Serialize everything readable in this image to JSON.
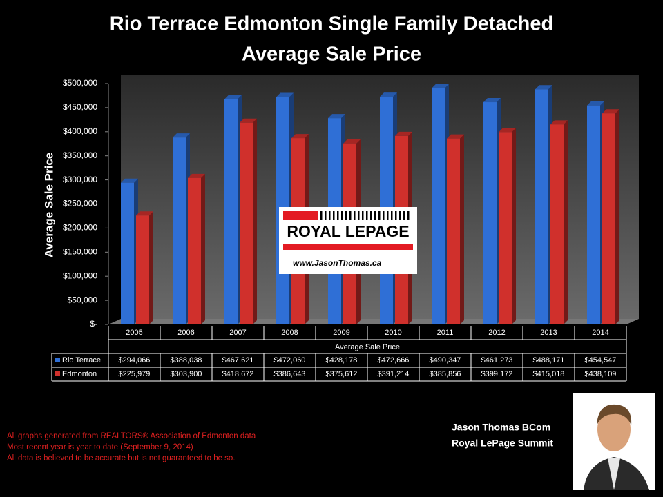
{
  "chart_data": {
    "type": "bar",
    "title": [
      "Rio Terrace Edmonton Single Family Detached",
      "Average Sale Price"
    ],
    "y_label": "Average Sale Price",
    "x_label": "Average Sale Price",
    "categories": [
      "2005",
      "2006",
      "2007",
      "2008",
      "2009",
      "2010",
      "2011",
      "2012",
      "2013",
      "2014"
    ],
    "series": [
      {
        "name": "Rio Terrace",
        "color": "#2f6fd6",
        "values": [
          294066,
          388038,
          467621,
          472060,
          428178,
          472666,
          490347,
          461273,
          488171,
          454547
        ],
        "value_labels": [
          "$294,066",
          "$388,038",
          "$467,621",
          "$472,060",
          "$428,178",
          "$472,666",
          "$490,347",
          "$461,273",
          "$488,171",
          "$454,547"
        ]
      },
      {
        "name": "Edmonton",
        "color": "#d0302c",
        "values": [
          225979,
          303900,
          418672,
          386643,
          375612,
          391214,
          385856,
          399172,
          415018,
          438109
        ],
        "value_labels": [
          "$225,979",
          "$303,900",
          "$418,672",
          "$386,643",
          "$375,612",
          "$391,214",
          "$385,856",
          "$399,172",
          "$415,018",
          "$438,109"
        ]
      }
    ],
    "ylim": [
      0,
      500000
    ],
    "yticks": [
      {
        "value": 0,
        "label": "$-"
      },
      {
        "value": 50000,
        "label": "$50,000"
      },
      {
        "value": 100000,
        "label": "$100,000"
      },
      {
        "value": 150000,
        "label": "$150,000"
      },
      {
        "value": 200000,
        "label": "$200,000"
      },
      {
        "value": 250000,
        "label": "$250,000"
      },
      {
        "value": 300000,
        "label": "$300,000"
      },
      {
        "value": 350000,
        "label": "$350,000"
      },
      {
        "value": 400000,
        "label": "$400,000"
      },
      {
        "value": 450000,
        "label": "$450,000"
      },
      {
        "value": 500000,
        "label": "$500,000"
      }
    ],
    "logo": {
      "brand": "ROYAL LEPAGE",
      "url": "www.JasonThomas.ca"
    },
    "notes": [
      "All graphs generated from REALTORS® Association of Edmonton data",
      "Most recent year is year to date (September 9, 2014)",
      "All data is believed to be accurate but is not guaranteed to be so."
    ],
    "signature": [
      "Jason Thomas BCom",
      "Royal LePage Summit"
    ]
  }
}
